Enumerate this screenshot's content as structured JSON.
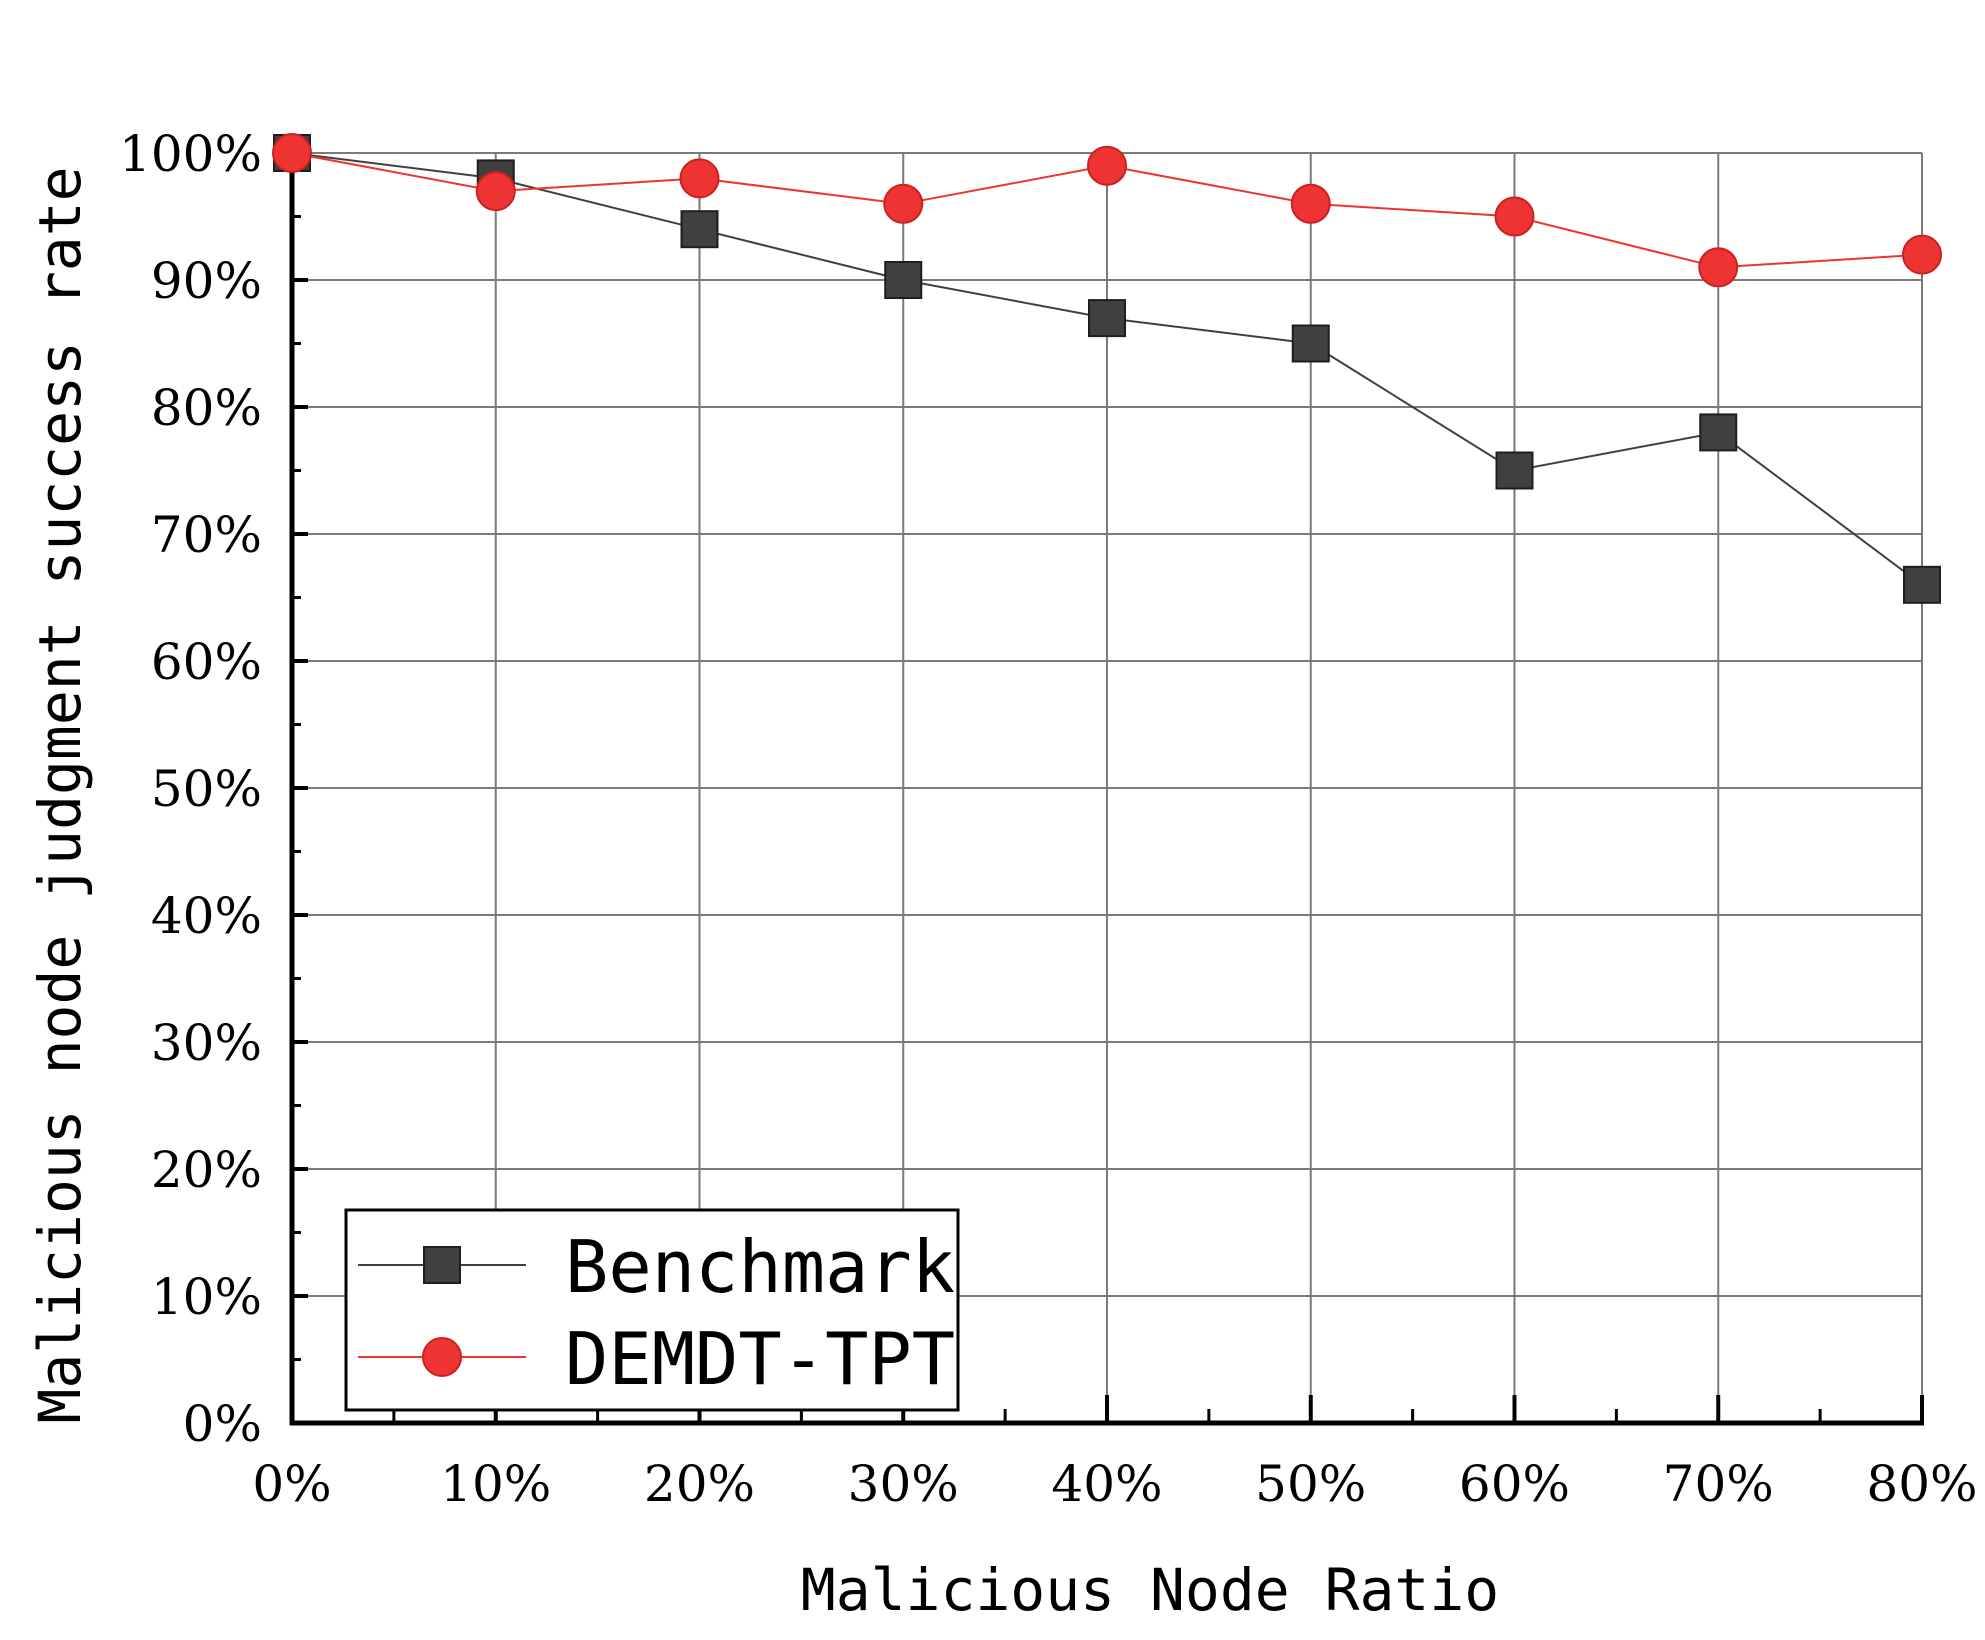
{
  "chart_data": {
    "type": "line",
    "title": "",
    "xlabel": "Malicious Node Ratio",
    "ylabel": "Malicious node judgment success rate",
    "x": [
      0,
      10,
      20,
      30,
      40,
      50,
      60,
      70,
      80
    ],
    "x_tick_labels": [
      "0%",
      "10%",
      "20%",
      "30%",
      "40%",
      "50%",
      "60%",
      "70%",
      "80%"
    ],
    "xlim": [
      0,
      80
    ],
    "ylim": [
      0,
      100
    ],
    "y_ticks": [
      0,
      10,
      20,
      30,
      40,
      50,
      60,
      70,
      80,
      90,
      100
    ],
    "y_tick_labels": [
      "0%",
      "10%",
      "20%",
      "30%",
      "40%",
      "50%",
      "60%",
      "70%",
      "80%",
      "90%",
      "100%"
    ],
    "grid": true,
    "legend_position": "bottom-left",
    "series": [
      {
        "name": "Benchmark",
        "marker": "square",
        "color": "#404040",
        "values": [
          100,
          98,
          94,
          90,
          87,
          85,
          75,
          78,
          66
        ]
      },
      {
        "name": "DEMDT-TPT",
        "marker": "circle",
        "color": "#ee3333",
        "values": [
          100,
          97,
          98,
          96,
          99,
          96,
          95,
          91,
          92
        ]
      }
    ]
  }
}
